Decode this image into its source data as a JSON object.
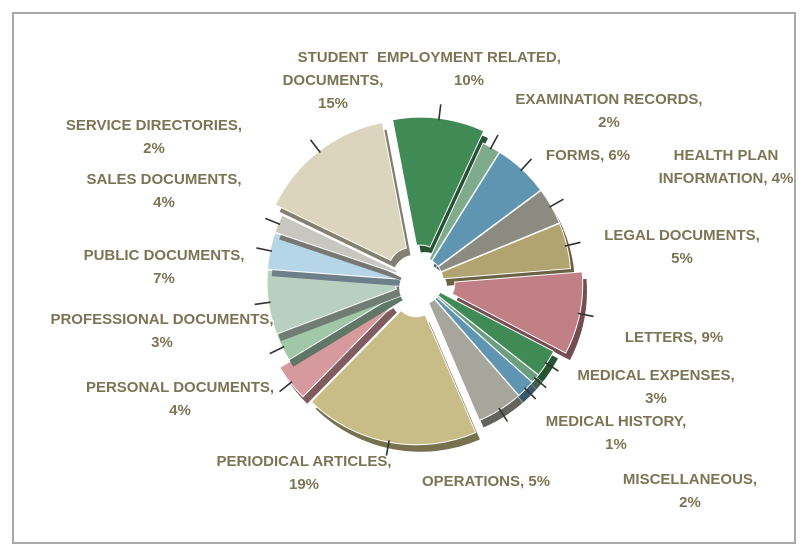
{
  "chart_data": {
    "type": "pie",
    "title": "",
    "slices": [
      {
        "label": "EMPLOYMENT RELATED, 10%",
        "category": "EMPLOYMENT RELATED",
        "value": 10,
        "exploded": true,
        "color": "#3f8a55"
      },
      {
        "label": "EXAMINATION RECORDS, 2%",
        "category": "EXAMINATION RECORDS",
        "value": 2,
        "exploded": false,
        "color": "#7dab8b"
      },
      {
        "label": "FORMS, 6%",
        "category": "FORMS",
        "value": 6,
        "exploded": false,
        "color": "#5f95b0"
      },
      {
        "label": "HEALTH PLAN INFORMATION, 4%",
        "category": "HEALTH PLAN INFORMATION",
        "value": 4,
        "exploded": false,
        "color": "#8b8b82"
      },
      {
        "label": "LEGAL DOCUMENTS, 5%",
        "category": "LEGAL DOCUMENTS",
        "value": 5,
        "exploded": false,
        "color": "#b2a470"
      },
      {
        "label": "LETTERS, 9%",
        "category": "LETTERS",
        "value": 9,
        "exploded": true,
        "color": "#c18085"
      },
      {
        "label": "MEDICAL EXPENSES, 3%",
        "category": "MEDICAL EXPENSES",
        "value": 3,
        "exploded": false,
        "color": "#3f8a55"
      },
      {
        "label": "MEDICAL HISTORY, 1%",
        "category": "MEDICAL HISTORY",
        "value": 1,
        "exploded": false,
        "color": "#6b9e7e"
      },
      {
        "label": "MISCELLANEOUS, 2%",
        "category": "MISCELLANEOUS",
        "value": 2,
        "exploded": false,
        "color": "#5f95b0"
      },
      {
        "label": "OPERATIONS, 5%",
        "category": "OPERATIONS",
        "value": 5,
        "exploded": false,
        "color": "#a6a69c"
      },
      {
        "label": "PERIODICAL ARTICLES, 19%",
        "category": "PERIODICAL ARTICLES",
        "value": 19,
        "exploded": true,
        "color": "#c8bd86"
      },
      {
        "label": "PERSONAL DOCUMENTS, 4%",
        "category": "PERSONAL DOCUMENTS",
        "value": 4,
        "exploded": true,
        "color": "#d69a9e"
      },
      {
        "label": "PROFESSIONAL DOCUMENTS, 3%",
        "category": "PROFESSIONAL DOCUMENTS",
        "value": 3,
        "exploded": false,
        "color": "#9fc7a8"
      },
      {
        "label": "PUBLIC DOCUMENTS, 7%",
        "category": "PUBLIC DOCUMENTS",
        "value": 7,
        "exploded": false,
        "color": "#b9d0c0"
      },
      {
        "label": "SALES DOCUMENTS, 4%",
        "category": "SALES DOCUMENTS",
        "value": 4,
        "exploded": false,
        "color": "#b5d6e6"
      },
      {
        "label": "SERVICE DIRECTORIES, 2%",
        "category": "SERVICE DIRECTORIES",
        "value": 2,
        "exploded": false,
        "color": "#c7c7c0"
      },
      {
        "label": "STUDENT DOCUMENTS, 15%",
        "category": "STUDENT DOCUMENTS",
        "value": 15,
        "exploded": true,
        "color": "#dcd5bd"
      }
    ],
    "legend": "none",
    "data_labels": "outside with leader lines"
  }
}
